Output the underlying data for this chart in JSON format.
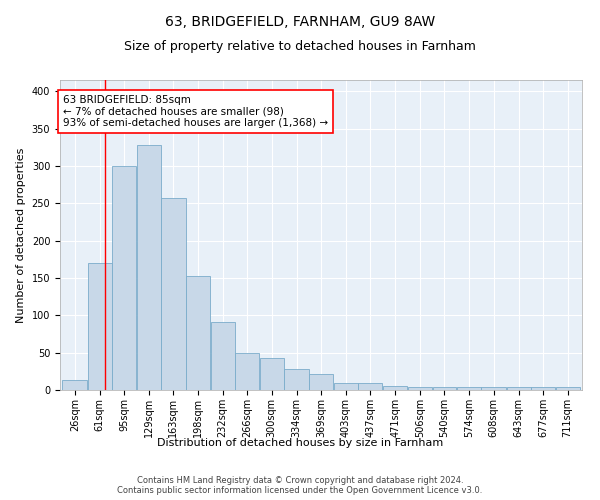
{
  "title1": "63, BRIDGEFIELD, FARNHAM, GU9 8AW",
  "title2": "Size of property relative to detached houses in Farnham",
  "xlabel": "Distribution of detached houses by size in Farnham",
  "ylabel": "Number of detached properties",
  "bar_labels": [
    "26sqm",
    "61sqm",
    "95sqm",
    "129sqm",
    "163sqm",
    "198sqm",
    "232sqm",
    "266sqm",
    "300sqm",
    "334sqm",
    "369sqm",
    "403sqm",
    "437sqm",
    "471sqm",
    "506sqm",
    "540sqm",
    "574sqm",
    "608sqm",
    "643sqm",
    "677sqm",
    "711sqm"
  ],
  "bin_edges": [
    26,
    61,
    95,
    129,
    163,
    198,
    232,
    266,
    300,
    334,
    369,
    403,
    437,
    471,
    506,
    540,
    574,
    608,
    643,
    677,
    711,
    745
  ],
  "heights": [
    14,
    170,
    300,
    328,
    257,
    152,
    91,
    50,
    43,
    28,
    22,
    10,
    9,
    5,
    4,
    4,
    4,
    4,
    4,
    4,
    4
  ],
  "bar_color": "#c8d8e8",
  "bar_edge_color": "#7aaccb",
  "annotation_text": "63 BRIDGEFIELD: 85sqm\n← 7% of detached houses are smaller (98)\n93% of semi-detached houses are larger (1,368) →",
  "red_line_x": 85,
  "ylim": [
    0,
    415
  ],
  "yticks": [
    0,
    50,
    100,
    150,
    200,
    250,
    300,
    350,
    400
  ],
  "footer": "Contains HM Land Registry data © Crown copyright and database right 2024.\nContains public sector information licensed under the Open Government Licence v3.0.",
  "bg_color": "#e8f0f8",
  "grid_color": "#ffffff",
  "title_fontsize": 10,
  "subtitle_fontsize": 9,
  "ylabel_fontsize": 8,
  "xlabel_fontsize": 8,
  "tick_fontsize": 7,
  "annotation_fontsize": 7.5,
  "footer_fontsize": 6
}
